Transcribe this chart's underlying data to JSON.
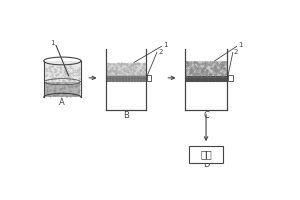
{
  "bg_color": "#ffffff",
  "line_color": "#444444",
  "label_A": "A",
  "label_B": "B",
  "label_C": "C",
  "label_D": "D",
  "label_1": "1",
  "label_2": "2",
  "label_dry": "烘干"
}
